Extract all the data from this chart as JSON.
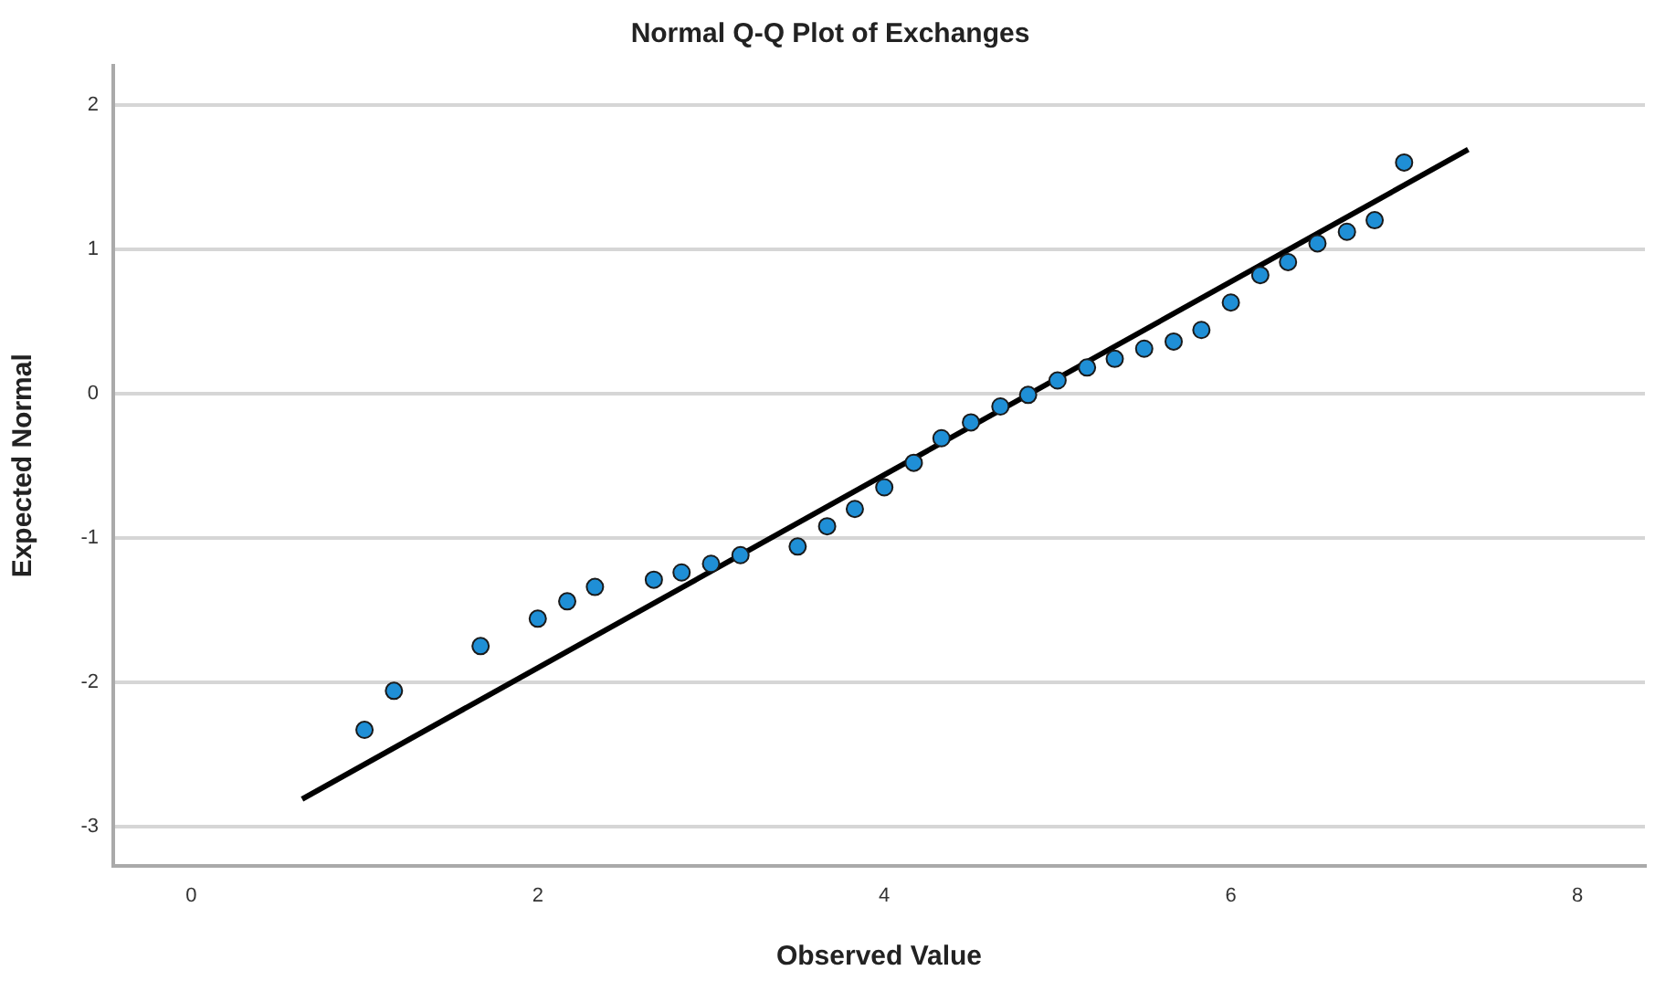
{
  "chart_data": {
    "type": "scatter",
    "title": "Normal Q-Q Plot of Exchanges",
    "xlabel": "Observed Value",
    "ylabel": "Expected Normal",
    "x": [
      1,
      1.17,
      1.67,
      2,
      2.17,
      2.33,
      2.67,
      2.83,
      3,
      3.17,
      3.5,
      3.67,
      3.83,
      4,
      4.17,
      4.33,
      4.5,
      4.67,
      4.83,
      5,
      5.17,
      5.33,
      5.5,
      5.67,
      5.83,
      6,
      6.17,
      6.33,
      6.5,
      6.67,
      6.83,
      7
    ],
    "series": [
      {
        "color": "#1f8fd6",
        "values": [
          -2.33,
          -2.06,
          -1.75,
          -1.56,
          -1.44,
          -1.34,
          -1.29,
          -1.24,
          -1.18,
          -1.12,
          -1.06,
          -0.92,
          -0.8,
          -0.65,
          -0.48,
          -0.31,
          -0.2,
          -0.09,
          -0.01,
          0.09,
          0.18,
          0.24,
          0.31,
          0.36,
          0.44,
          0.63,
          0.82,
          0.91,
          1.04,
          1.12,
          1.2,
          1.6
        ]
      },
      {
        "type": "line",
        "color": "#000000",
        "marker": "none",
        "x": [
          0.64,
          7.37
        ],
        "values": [
          -2.81,
          1.69
        ]
      }
    ],
    "xlim": [
      -0.45,
      8.39
    ],
    "ylim": [
      -3.27,
      2.27
    ],
    "xticks": [
      0,
      2,
      4,
      6,
      8
    ],
    "yticks": [
      -3,
      -2,
      -1,
      0,
      1,
      2
    ],
    "grid": "y",
    "legend": false,
    "marker": "circle"
  }
}
